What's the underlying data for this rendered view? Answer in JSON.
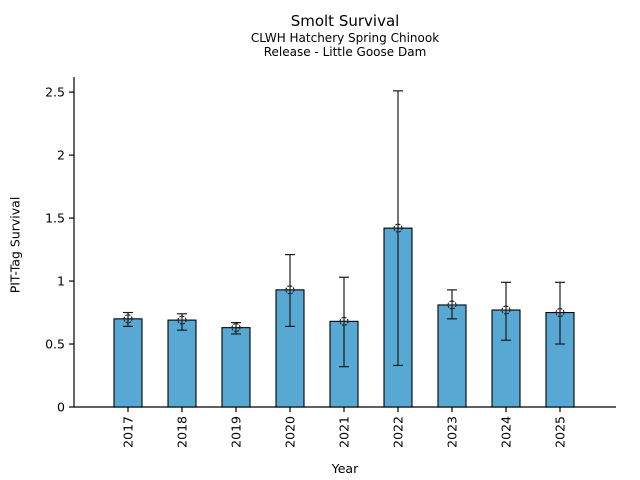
{
  "chart_data": {
    "type": "bar",
    "title": "Smolt Survival",
    "subtitle_lines": [
      "CLWH Hatchery Spring Chinook",
      "Release - Little Goose Dam"
    ],
    "xlabel": "Year",
    "ylabel": "PIT-Tag Survival",
    "categories": [
      "2017",
      "2018",
      "2019",
      "2020",
      "2021",
      "2022",
      "2023",
      "2024",
      "2025"
    ],
    "values": [
      0.7,
      0.69,
      0.63,
      0.93,
      0.68,
      1.42,
      0.81,
      0.77,
      0.75
    ],
    "error_low": [
      0.64,
      0.61,
      0.58,
      0.64,
      0.32,
      0.33,
      0.7,
      0.53,
      0.5
    ],
    "error_high": [
      0.75,
      0.74,
      0.67,
      1.21,
      1.03,
      2.51,
      0.93,
      0.99,
      0.99
    ],
    "yticks": [
      0,
      0.5,
      1,
      1.5,
      2,
      2.5
    ],
    "ytick_labels": [
      "0",
      "0.5",
      "1",
      "1.5",
      "2",
      "2.5"
    ],
    "ylim": [
      0,
      2.62
    ],
    "grid": false,
    "legend": null,
    "marker": "open-circle",
    "bar_color": "#57A9D3",
    "edge_color": "#000000",
    "error_color": "#1a1a1a",
    "axis_color": "#000000",
    "text_color": "#000000"
  }
}
